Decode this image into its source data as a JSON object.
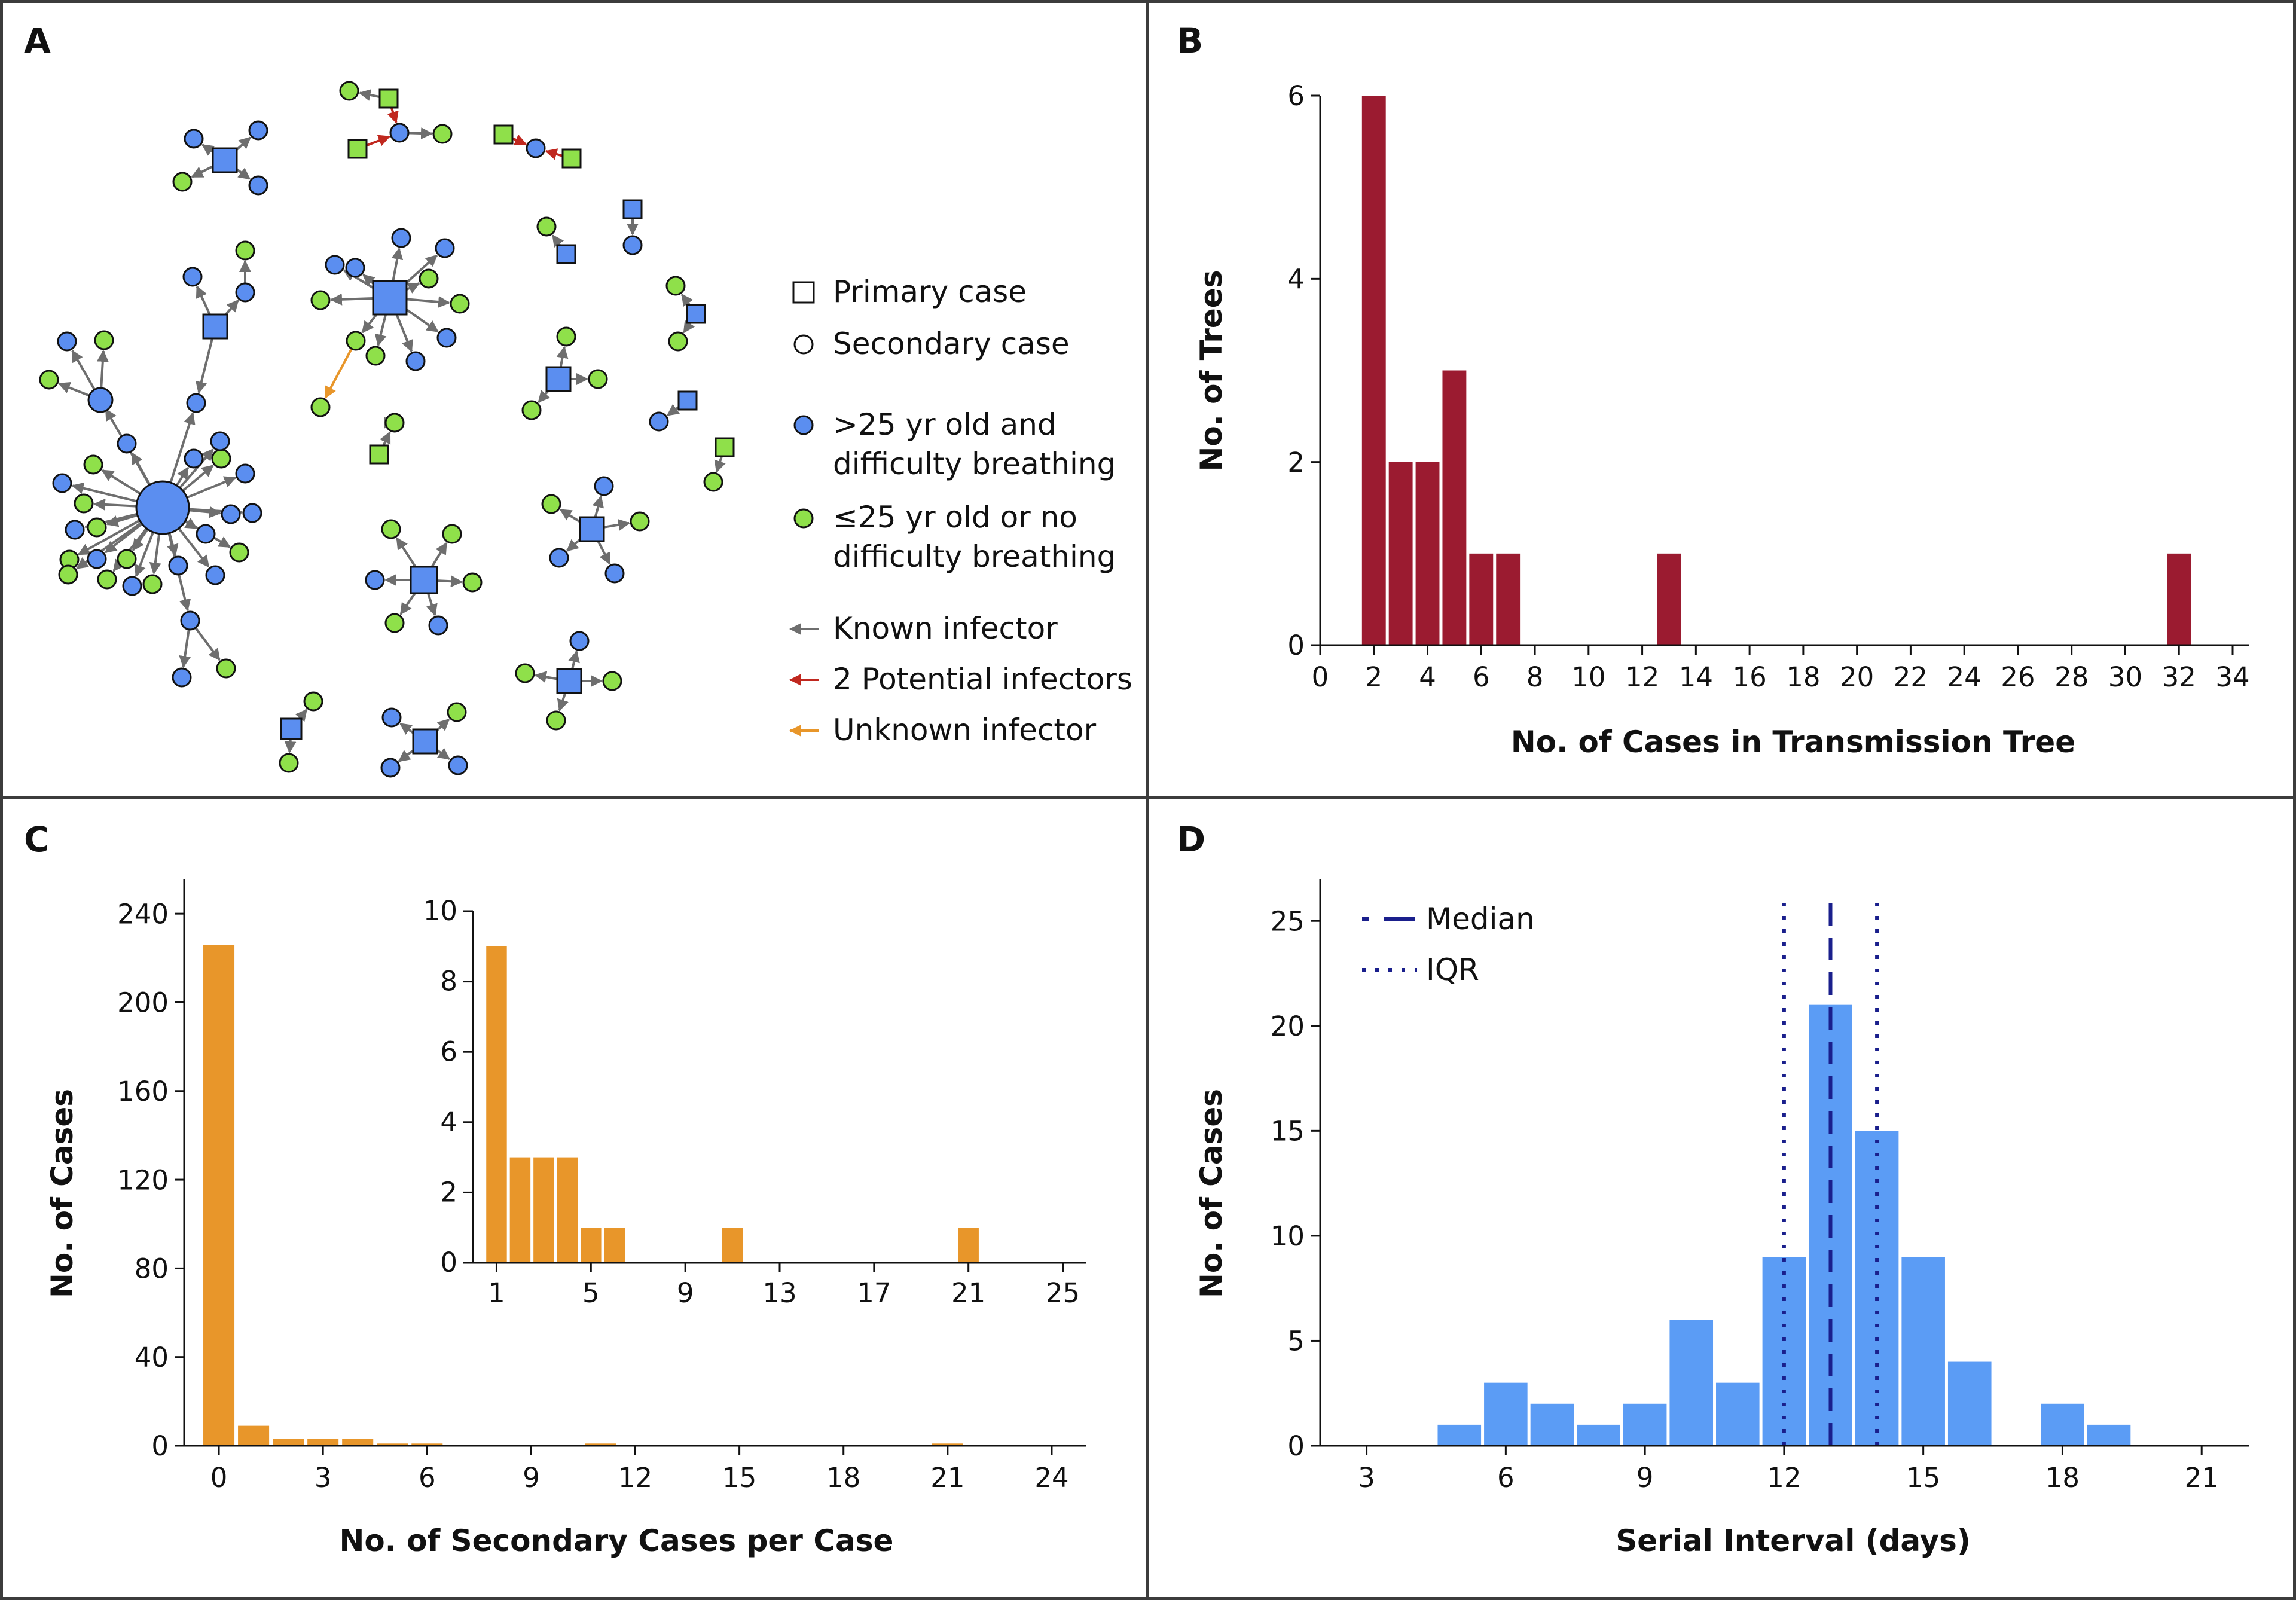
{
  "panels": {
    "A": {
      "label": "A"
    },
    "B": {
      "label": "B"
    },
    "C": {
      "label": "C"
    },
    "D": {
      "label": "D"
    }
  },
  "legend_a": {
    "primary": "Primary case",
    "secondary": "Secondary case",
    "over25_line1": ">25 yr old and",
    "over25_line2": "difficulty breathing",
    "under25_line1": "≤25 yr old or no",
    "under25_line2": "difficulty breathing",
    "known": "Known infector",
    "potential": "2 Potential infectors",
    "unknown": "Unknown infector"
  },
  "colors": {
    "blue_node": "#5b8ef0",
    "green_node": "#8fe04a",
    "known_arrow": "#6e6e6e",
    "potential_arrow": "#c0281f",
    "unknown_arrow": "#e8962a",
    "bar_b": "#9b1b30",
    "bar_c": "#e8962a",
    "bar_d": "#5b9cf5",
    "median_line": "#1a1f8c"
  },
  "chart_data": [
    {
      "id": "B",
      "type": "bar",
      "xlabel": "No. of Cases in Transmission Tree",
      "ylabel": "No. of Trees",
      "xlim": [
        0,
        34
      ],
      "ylim": [
        0,
        6
      ],
      "xticks": [
        0,
        2,
        4,
        6,
        8,
        10,
        12,
        14,
        16,
        18,
        20,
        22,
        24,
        26,
        28,
        30,
        32,
        34
      ],
      "yticks": [
        0,
        2,
        4,
        6
      ],
      "x": [
        2,
        3,
        4,
        5,
        6,
        7,
        13,
        32
      ],
      "values": [
        6,
        2,
        2,
        3,
        1,
        1,
        1,
        1
      ]
    },
    {
      "id": "C",
      "type": "bar",
      "xlabel": "No. of Secondary Cases per Case",
      "ylabel": "No. of Cases",
      "xlim": [
        -1,
        25
      ],
      "ylim": [
        0,
        260
      ],
      "xticks": [
        0,
        3,
        6,
        9,
        12,
        15,
        18,
        21,
        24
      ],
      "yticks": [
        0,
        40,
        80,
        120,
        160,
        200,
        240
      ],
      "x": [
        0,
        1,
        2,
        3,
        4,
        5,
        6,
        11,
        21
      ],
      "values": [
        226,
        9,
        3,
        3,
        3,
        1,
        1,
        1,
        1
      ],
      "inset": {
        "xlim": [
          0,
          26
        ],
        "ylim": [
          0,
          10
        ],
        "xticks": [
          1,
          5,
          9,
          13,
          17,
          21,
          25
        ],
        "yticks": [
          0,
          2,
          4,
          6,
          8,
          10
        ],
        "x": [
          1,
          2,
          3,
          4,
          5,
          6,
          11,
          21
        ],
        "values": [
          9,
          3,
          3,
          3,
          1,
          1,
          1,
          1
        ]
      }
    },
    {
      "id": "D",
      "type": "bar",
      "xlabel": "Serial Interval (days)",
      "ylabel": "No. of Cases",
      "xlim": [
        2,
        21.5
      ],
      "ylim": [
        0,
        27
      ],
      "xticks": [
        3,
        6,
        9,
        12,
        15,
        18,
        21
      ],
      "yticks": [
        0,
        5,
        10,
        15,
        20,
        25
      ],
      "x": [
        5,
        6,
        7,
        8,
        9,
        10,
        11,
        12,
        13,
        14,
        15,
        16,
        17,
        18,
        19
      ],
      "values": [
        1,
        3,
        2,
        1,
        2,
        6,
        3,
        9,
        21,
        15,
        9,
        4,
        0,
        2,
        1
      ],
      "median": 13,
      "iqr": [
        12,
        14
      ],
      "legend": {
        "median": "Median",
        "iqr": "IQR"
      }
    }
  ]
}
